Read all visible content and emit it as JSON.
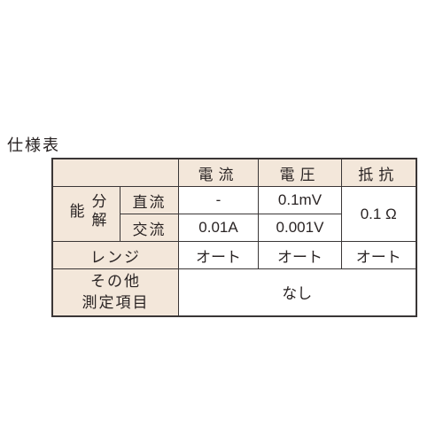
{
  "title": "仕様表",
  "headers": {
    "current": "電流",
    "voltage": "電圧",
    "resistance": "抵抗"
  },
  "rows": {
    "resolution": {
      "label": "分解能",
      "dc": {
        "label": "直流",
        "current": "-",
        "voltage": "0.1mV"
      },
      "ac": {
        "label": "交流",
        "current": "0.01A",
        "voltage": "0.001V"
      },
      "resistance": "0.1 Ω"
    },
    "range": {
      "label": "レンジ",
      "current": "オート",
      "voltage": "オート",
      "resistance": "オート"
    },
    "other": {
      "label_line1": "その他",
      "label_line2": "測定項目",
      "value": "なし"
    }
  },
  "style": {
    "header_bg": "#f3e7da",
    "border": "#3a3636",
    "text_color": "#2a2424",
    "title_color": "#262020"
  }
}
